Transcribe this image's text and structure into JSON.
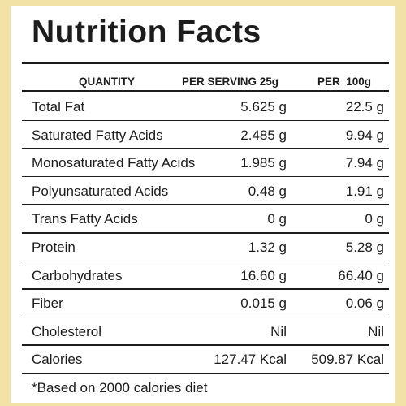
{
  "title": "Nutrition Facts",
  "headers": {
    "quantity": "QUANTITY",
    "per_serving": "PER SERVING 25g",
    "per_100g": "PER  100g"
  },
  "rows": [
    {
      "name": "Total Fat",
      "per_serving": "5.625 g",
      "per_100g": "22.5 g"
    },
    {
      "name": "Saturated Fatty Acids",
      "per_serving": "2.485 g",
      "per_100g": "9.94 g"
    },
    {
      "name": "Monosaturated Fatty Acids",
      "per_serving": "1.985 g",
      "per_100g": "7.94 g"
    },
    {
      "name": "Polyunsaturated Acids",
      "per_serving": "0.48 g",
      "per_100g": "1.91 g"
    },
    {
      "name": "Trans Fatty Acids",
      "per_serving": "0 g",
      "per_100g": "0 g"
    },
    {
      "name": "Protein",
      "per_serving": "1.32 g",
      "per_100g": "5.28 g"
    },
    {
      "name": "Carbohydrates",
      "per_serving": "16.60 g",
      "per_100g": "66.40 g"
    },
    {
      "name": "Fiber",
      "per_serving": "0.015 g",
      "per_100g": "0.06 g"
    },
    {
      "name": "Cholesterol",
      "per_serving": "Nil",
      "per_100g": "Nil"
    },
    {
      "name": "Calories",
      "per_serving": "127.47 Kcal",
      "per_100g": "509.87 Kcal"
    }
  ],
  "footnote": "*Based on 2000 calories diet",
  "colors": {
    "background": "#f3e2a6",
    "panel": "#ffffff",
    "ink": "#1c1c1c"
  }
}
